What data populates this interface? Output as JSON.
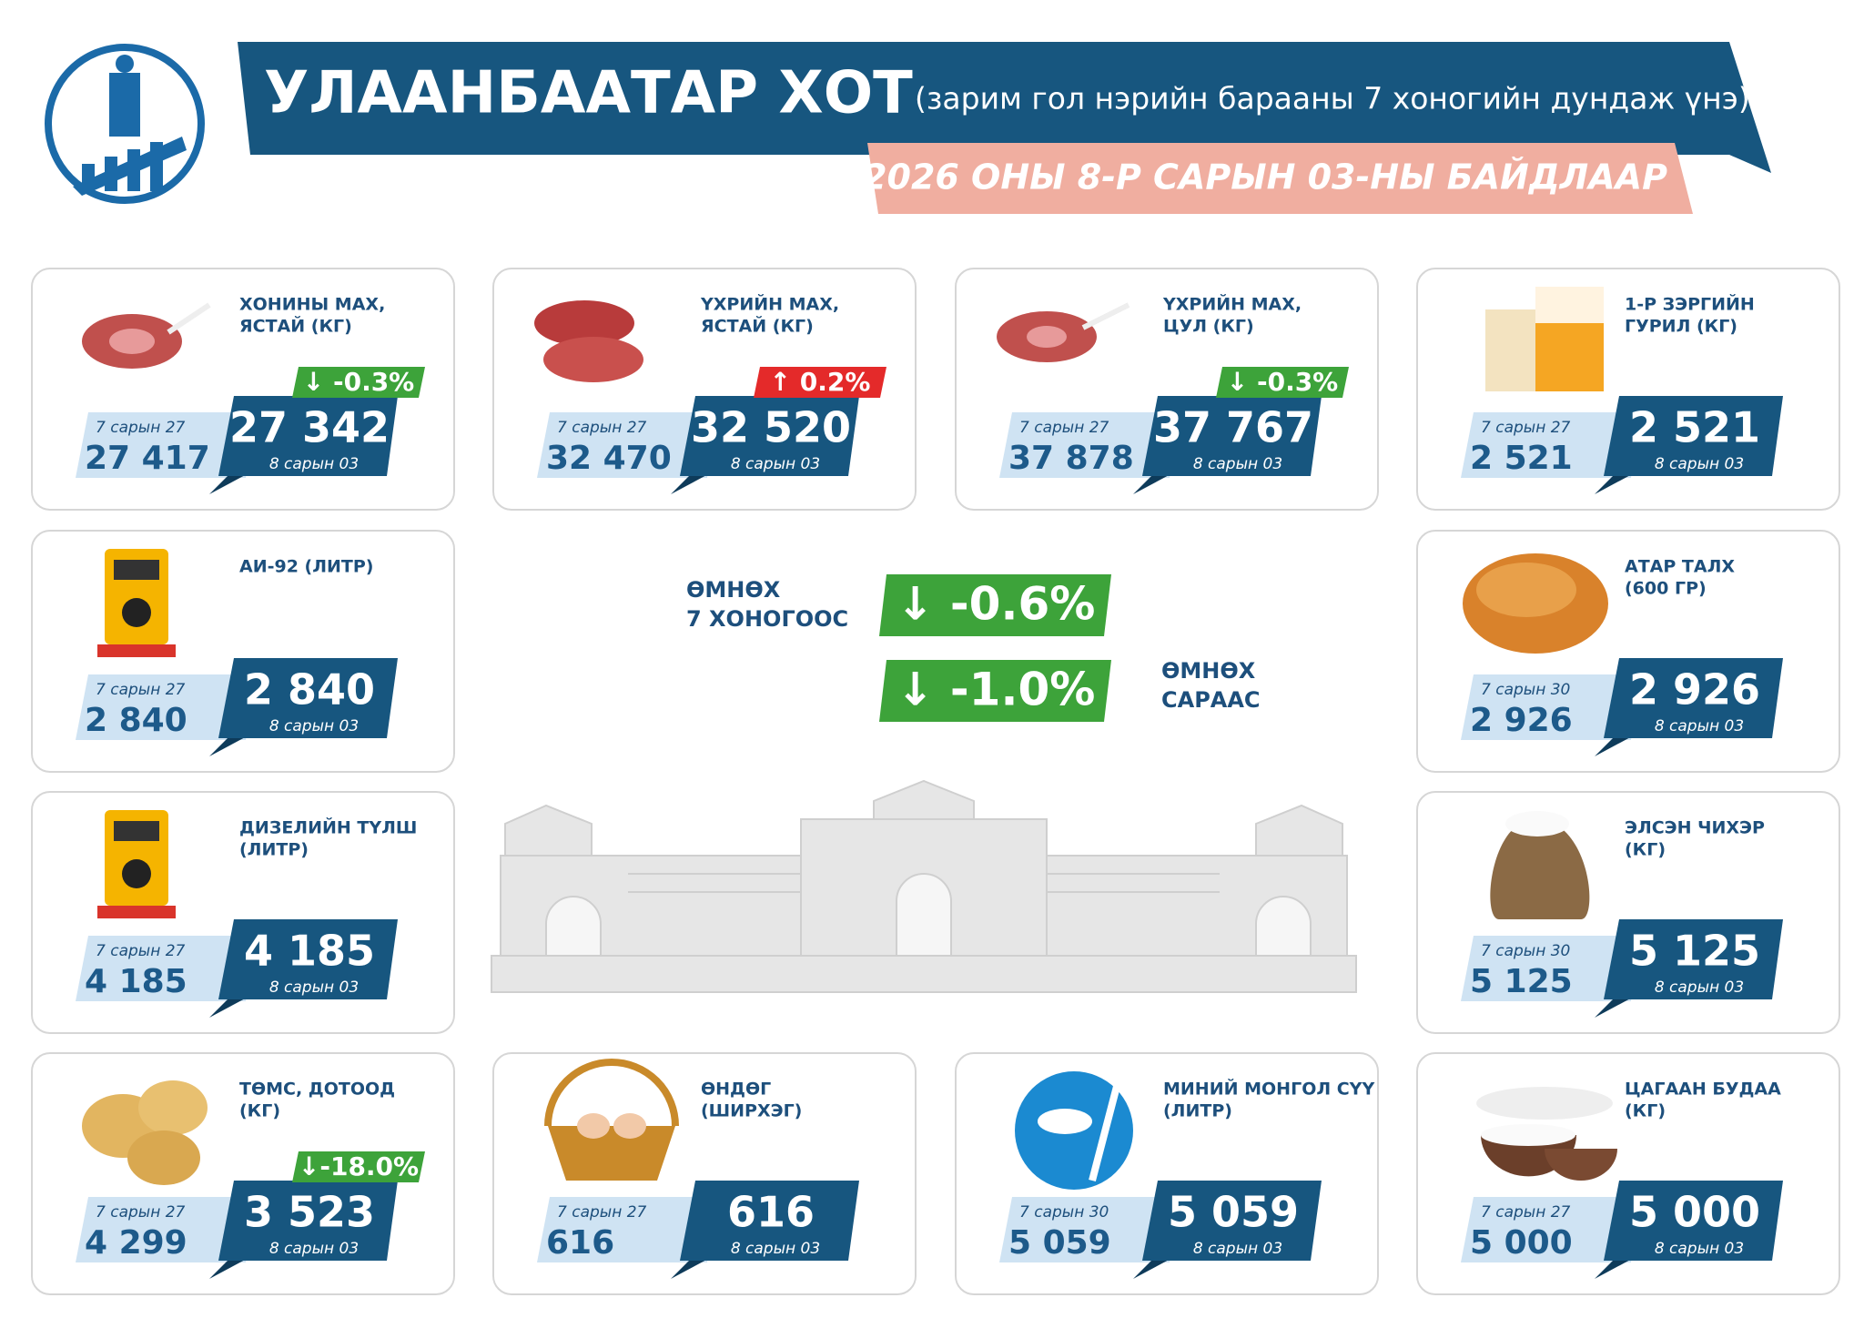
{
  "header": {
    "title": "УЛААНБААТАР ХОТ",
    "subtitle": "(зарим гол нэрийн барааны 7 хоногийн дундаж үнэ)",
    "date": "2026 ОНЫ 8-Р САРЫН 03-НЫ БАЙДЛААР"
  },
  "summary": [
    {
      "label": [
        "ӨМНӨХ",
        "7 ХОНОГООС"
      ],
      "change": "↓ -0.6%"
    },
    {
      "label": [
        "ӨМНӨХ",
        "САРААС"
      ],
      "change": "↓ -1.0%"
    }
  ],
  "cards": [
    {
      "name": [
        "ХОНИНЫ МАХ,",
        "ЯСТАЙ (КГ)"
      ],
      "previous": {
        "date": "7 сарын 27",
        "price": "27 417"
      },
      "current": {
        "price": "27 342",
        "date": "8 сарын 03"
      },
      "change": {
        "text": "↓ -0.3%",
        "direction": "down"
      }
    },
    {
      "name": [
        "ҮХРИЙН МАХ,",
        "ЯСТАЙ (КГ)"
      ],
      "previous": {
        "date": "7 сарын 27",
        "price": "32 470"
      },
      "current": {
        "price": "32 520",
        "date": "8 сарын 03"
      },
      "change": {
        "text": "↑ 0.2%",
        "direction": "up"
      }
    },
    {
      "name": [
        "ҮХРИЙН МАХ,",
        "ЦУЛ (КГ)"
      ],
      "previous": {
        "date": "7 сарын 27",
        "price": "37 878"
      },
      "current": {
        "price": "37 767",
        "date": "8 сарын 03"
      },
      "change": {
        "text": "↓ -0.3%",
        "direction": "down"
      }
    },
    {
      "name": [
        "1-Р ЗЭРГИЙН",
        "ГУРИЛ (КГ)"
      ],
      "previous": {
        "date": "7 сарын 27",
        "price": "2 521"
      },
      "current": {
        "price": "2 521",
        "date": "8 сарын 03"
      }
    },
    {
      "name": [
        "АИ-92 (ЛИТР)"
      ],
      "previous": {
        "date": "7 сарын 27",
        "price": "2 840"
      },
      "current": {
        "price": "2 840",
        "date": "8 сарын 03"
      }
    },
    {
      "name": [
        "АТАР ТАЛХ",
        "(600 ГР)"
      ],
      "previous": {
        "date": "7 сарын 30",
        "price": "2 926"
      },
      "current": {
        "price": "2 926",
        "date": "8 сарын 03"
      }
    },
    {
      "name": [
        "ДИЗЕЛИЙН ТҮЛШ",
        "(ЛИТР)"
      ],
      "previous": {
        "date": "7 сарын 27",
        "price": "4 185"
      },
      "current": {
        "price": "4 185",
        "date": "8 сарын 03"
      }
    },
    {
      "name": [
        "ЭЛСЭН ЧИХЭР",
        "(КГ)"
      ],
      "previous": {
        "date": "7 сарын 30",
        "price": "5 125"
      },
      "current": {
        "price": "5 125",
        "date": "8 сарын 03"
      }
    },
    {
      "name": [
        "ТӨМС, ДОТООД",
        "(КГ)"
      ],
      "previous": {
        "date": "7 сарын 27",
        "price": "4 299"
      },
      "current": {
        "price": "3 523",
        "date": "8 сарын 03"
      },
      "change": {
        "text": "↓-18.0%",
        "direction": "down"
      }
    },
    {
      "name": [
        "ӨНДӨГ",
        "(ШИРХЭГ)"
      ],
      "previous": {
        "date": "7 сарын 27",
        "price": "616"
      },
      "current": {
        "price": "616",
        "date": "8 сарын 03"
      }
    },
    {
      "name": [
        "МИНИЙ МОНГОЛ СҮҮ",
        "(ЛИТР)"
      ],
      "previous": {
        "date": "7 сарын 30",
        "price": "5 059"
      },
      "current": {
        "price": "5 059",
        "date": "8 сарын 03"
      }
    },
    {
      "name": [
        "ЦАГААН БУДАА",
        "(КГ)"
      ],
      "previous": {
        "date": "7 сарын 27",
        "price": "5 000"
      },
      "current": {
        "price": "5 000",
        "date": "8 сарын 03"
      }
    }
  ]
}
